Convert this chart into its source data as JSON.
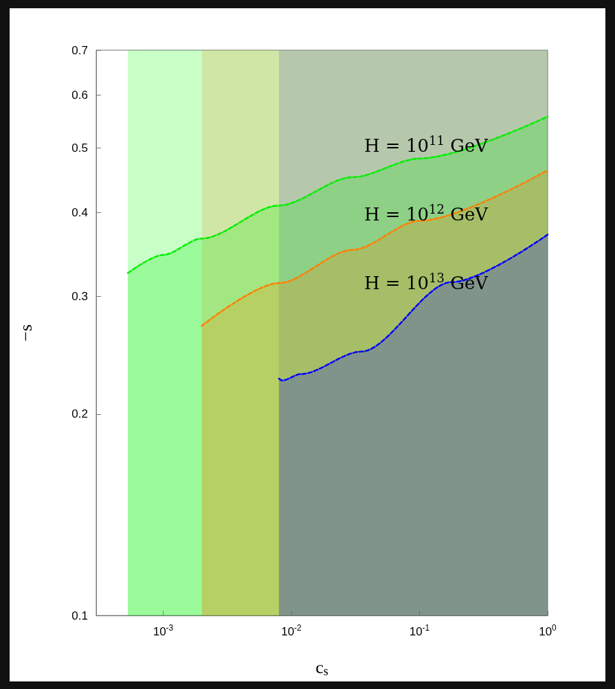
{
  "chart_data": {
    "type": "area",
    "xlabel": "c$_{s}$",
    "ylabel": "−s",
    "log": "xy",
    "xlim": [
      0.0003,
      1
    ],
    "ylim": [
      0.1,
      0.7
    ],
    "xticks": [
      {
        "value": 0.001,
        "label": "10$^{-3}$"
      },
      {
        "value": 0.01,
        "label": "10$^{-2}$"
      },
      {
        "value": 0.1,
        "label": "10$^{-1}$"
      },
      {
        "value": 1,
        "label": "10$^{0}$"
      }
    ],
    "yticks": [
      0.1,
      0.2,
      0.3,
      0.4,
      0.5,
      0.6,
      0.7
    ],
    "grid": false,
    "marker": "none",
    "line_style": "dashed",
    "bands": [
      {
        "axis": "x",
        "from": 0.00053,
        "to": 1,
        "color": "#00ff00"
      },
      {
        "axis": "x",
        "from": 0.002,
        "to": 1,
        "color": "#f08b30"
      },
      {
        "axis": "x",
        "from": 0.008,
        "to": 1,
        "color": "#5a61c4"
      }
    ],
    "series": [
      {
        "color": "#00ee00",
        "x": [
          0.00053,
          0.001,
          0.002,
          0.008,
          0.03,
          0.1,
          1
        ],
        "values": [
          0.325,
          0.346,
          0.366,
          0.41,
          0.452,
          0.482,
          0.557
        ]
      },
      {
        "color": "#ff7f00",
        "x": [
          0.002,
          0.008,
          0.03,
          0.1,
          1
        ],
        "values": [
          0.271,
          0.314,
          0.352,
          0.389,
          0.463
        ]
      },
      {
        "color": "#0000ff",
        "x": [
          0.008,
          0.0085,
          0.0119,
          0.035,
          0.178,
          1
        ],
        "values": [
          0.226,
          0.2246,
          0.2296,
          0.248,
          0.315,
          0.371
        ]
      }
    ],
    "annotations": [
      "H = 10$^{11}$ GeV",
      "H = 10$^{12}$ GeV",
      "H = 10$^{13}$ GeV"
    ]
  }
}
